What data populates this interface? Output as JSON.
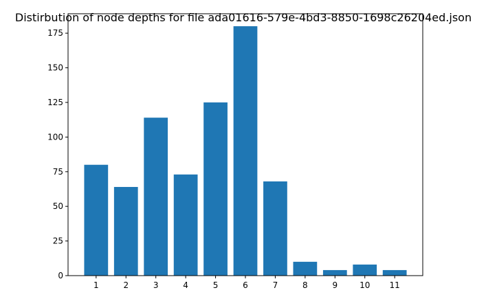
{
  "chart_data": {
    "type": "bar",
    "title": "Distirbution of node depths for file ada01616-579e-4bd3-8850-1698c26204ed.json",
    "xlabel": "",
    "ylabel": "",
    "categories": [
      "1",
      "2",
      "3",
      "4",
      "5",
      "6",
      "7",
      "8",
      "9",
      "10",
      "11"
    ],
    "values": [
      80,
      64,
      114,
      73,
      125,
      180,
      68,
      10,
      4,
      8,
      4
    ],
    "ylim": [
      0,
      189
    ],
    "yticks": [
      0,
      25,
      50,
      75,
      100,
      125,
      150,
      175
    ],
    "grid": false,
    "bar_color": "#1f77b4"
  }
}
